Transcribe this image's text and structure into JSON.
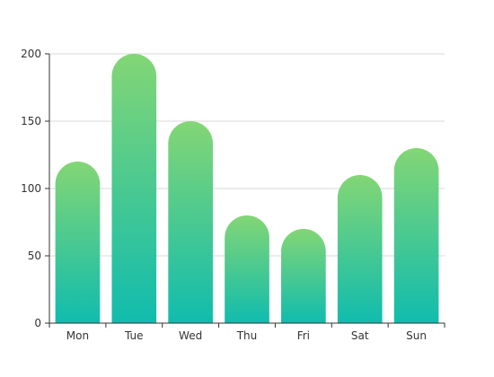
{
  "chart_data": {
    "type": "bar",
    "title": "",
    "xlabel": "",
    "ylabel": "",
    "categories": [
      "Mon",
      "Tue",
      "Wed",
      "Thu",
      "Fri",
      "Sat",
      "Sun"
    ],
    "series": [
      {
        "values": [
          120,
          200,
          150,
          80,
          70,
          110,
          130
        ]
      }
    ],
    "ylim": [
      0,
      200
    ],
    "yticks": [
      0,
      50,
      100,
      150,
      200
    ],
    "grid": true,
    "legend": "none",
    "bar_style": "rounded top, vertical gradient",
    "colors": {
      "gradient_top": "#83d675",
      "gradient_bottom": "#10bcae",
      "grid": "#d9d9d9",
      "axis": "#333333",
      "text": "#333333"
    }
  }
}
